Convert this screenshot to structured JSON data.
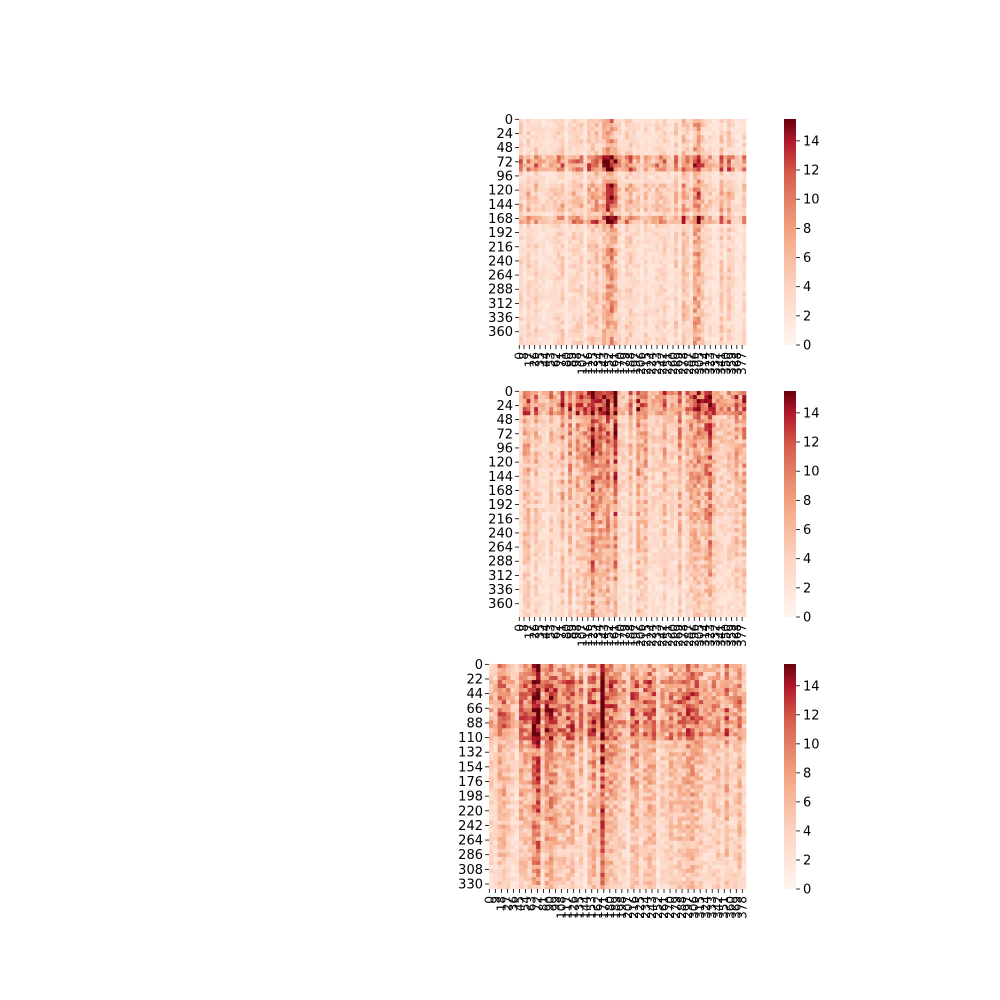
{
  "chart_data": [
    {
      "type": "heatmap",
      "title": "",
      "xlabel": "",
      "ylabel": "",
      "colormap": "RdBu_r (positive half)",
      "color_low": "#fff5f0",
      "color_high": "#67000d",
      "value_range": [
        0,
        15.5
      ],
      "n_rows": 383,
      "n_cols": 384,
      "ytick_labels": [
        "0",
        "24",
        "48",
        "72",
        "96",
        "120",
        "144",
        "168",
        "192",
        "216",
        "240",
        "264",
        "288",
        "312",
        "336",
        "360"
      ],
      "xtick_labels": [
        "0",
        "8",
        "17",
        "26",
        "35",
        "44",
        "53",
        "62",
        "71",
        "80",
        "89",
        "98",
        "107",
        "116",
        "125",
        "134",
        "143",
        "152",
        "161",
        "170",
        "179",
        "188",
        "197",
        "206",
        "215",
        "224",
        "233",
        "242",
        "251",
        "260",
        "269",
        "278",
        "287",
        "296",
        "305",
        "314",
        "323",
        "332",
        "341",
        "350",
        "359",
        "368",
        "377"
      ],
      "colorbar_ticks": [
        "0",
        "2",
        "4",
        "6",
        "8",
        "10",
        "12",
        "14"
      ],
      "row_pattern": "hot bands near rows 72 and 168, rows 96-150 moderate",
      "col_pattern": "hot columns near 140-150"
    },
    {
      "type": "heatmap",
      "title": "",
      "xlabel": "",
      "ylabel": "",
      "colormap": "RdBu_r (positive half)",
      "color_low": "#fff5f0",
      "color_high": "#67000d",
      "value_range": [
        0,
        15.5
      ],
      "n_rows": 383,
      "n_cols": 384,
      "ytick_labels": [
        "0",
        "24",
        "48",
        "72",
        "96",
        "120",
        "144",
        "168",
        "192",
        "216",
        "240",
        "264",
        "288",
        "312",
        "336",
        "360"
      ],
      "xtick_labels": [
        "0",
        "8",
        "17",
        "26",
        "35",
        "44",
        "53",
        "62",
        "71",
        "80",
        "89",
        "98",
        "107",
        "116",
        "125",
        "134",
        "143",
        "152",
        "161",
        "170",
        "179",
        "188",
        "197",
        "206",
        "215",
        "224",
        "233",
        "242",
        "251",
        "260",
        "269",
        "278",
        "287",
        "296",
        "305",
        "314",
        "323",
        "332",
        "341",
        "350",
        "359",
        "368",
        "377"
      ],
      "colorbar_ticks": [
        "0",
        "2",
        "4",
        "6",
        "8",
        "10",
        "12",
        "14"
      ],
      "row_pattern": "very hot top rows 0-40, fading downward",
      "col_pattern": "hot columns near 130-160"
    },
    {
      "type": "heatmap",
      "title": "",
      "xlabel": "",
      "ylabel": "",
      "colormap": "RdBu_r (positive half)",
      "color_low": "#fff5f0",
      "color_high": "#67000d",
      "value_range": [
        0,
        15.5
      ],
      "n_rows": 338,
      "n_cols": 384,
      "ytick_labels": [
        "0",
        "22",
        "44",
        "66",
        "88",
        "110",
        "132",
        "154",
        "176",
        "198",
        "220",
        "242",
        "264",
        "286",
        "308",
        "330"
      ],
      "xtick_labels": [
        "0",
        "9",
        "18",
        "27",
        "36",
        "45",
        "54",
        "63",
        "72",
        "81",
        "90",
        "99",
        "108",
        "117",
        "126",
        "135",
        "144",
        "153",
        "162",
        "171",
        "180",
        "189",
        "198",
        "207",
        "216",
        "225",
        "234",
        "243",
        "252",
        "261",
        "270",
        "279",
        "288",
        "297",
        "306",
        "315",
        "324",
        "333",
        "342",
        "351",
        "360",
        "369",
        "378"
      ],
      "colorbar_ticks": [
        "0",
        "2",
        "4",
        "6",
        "8",
        "10",
        "12",
        "14"
      ],
      "row_pattern": "hot rows 20-110, lighter below",
      "col_pattern": "hot columns near 160-180"
    }
  ]
}
